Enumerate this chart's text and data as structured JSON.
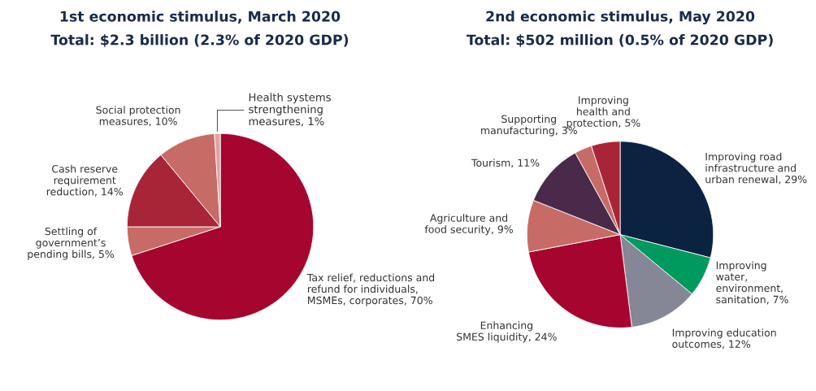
{
  "chart_data": [
    {
      "type": "pie",
      "title": "1st economic stimulus, March 2020",
      "subtitle": "Total: $2.3 billion (2.3% of 2020 GDP)",
      "categories": [
        "Tax relief, reductions and\nrefund for individuals,\nMSMEs, corporates",
        "Settling of\ngovernment’s\npending bills",
        "Cash reserve\nrequirement\nreduction",
        "Social protection\nmeasures",
        "Health systems\nstrengthening\nmeasures"
      ],
      "values": [
        70,
        5,
        14,
        10,
        1
      ],
      "value_labels": [
        "70%",
        "5%",
        "14%",
        "10%",
        "1%"
      ],
      "colors": [
        "#a6052f",
        "#c76b67",
        "#a82538",
        "#c76b67",
        "#dba5a2"
      ]
    },
    {
      "type": "pie",
      "title": "2nd economic stimulus, May 2020",
      "subtitle": "Total: $502 million (0.5% of 2020 GDP)",
      "categories": [
        "Improving road\ninfrastructure and\nurban renewal",
        "Improving\nwater,\nenvironment,\nsanitation",
        "Improving education\noutcomes",
        "Enhancing\nSMES liquidity",
        "Agriculture and\nfood security",
        "Tourism",
        "Supporting\nmanufacturing",
        "Improving\nhealth and\nprotection"
      ],
      "values": [
        29,
        7,
        12,
        24,
        9,
        11,
        3,
        5
      ],
      "value_labels": [
        "29%",
        "7%",
        "12%",
        "24%",
        "9%",
        "11%",
        "3%",
        "5%"
      ],
      "colors": [
        "#0b2240",
        "#009a5e",
        "#858797",
        "#a6052f",
        "#c76b67",
        "#4a2a4a",
        "#c76b67",
        "#a82538"
      ]
    }
  ]
}
